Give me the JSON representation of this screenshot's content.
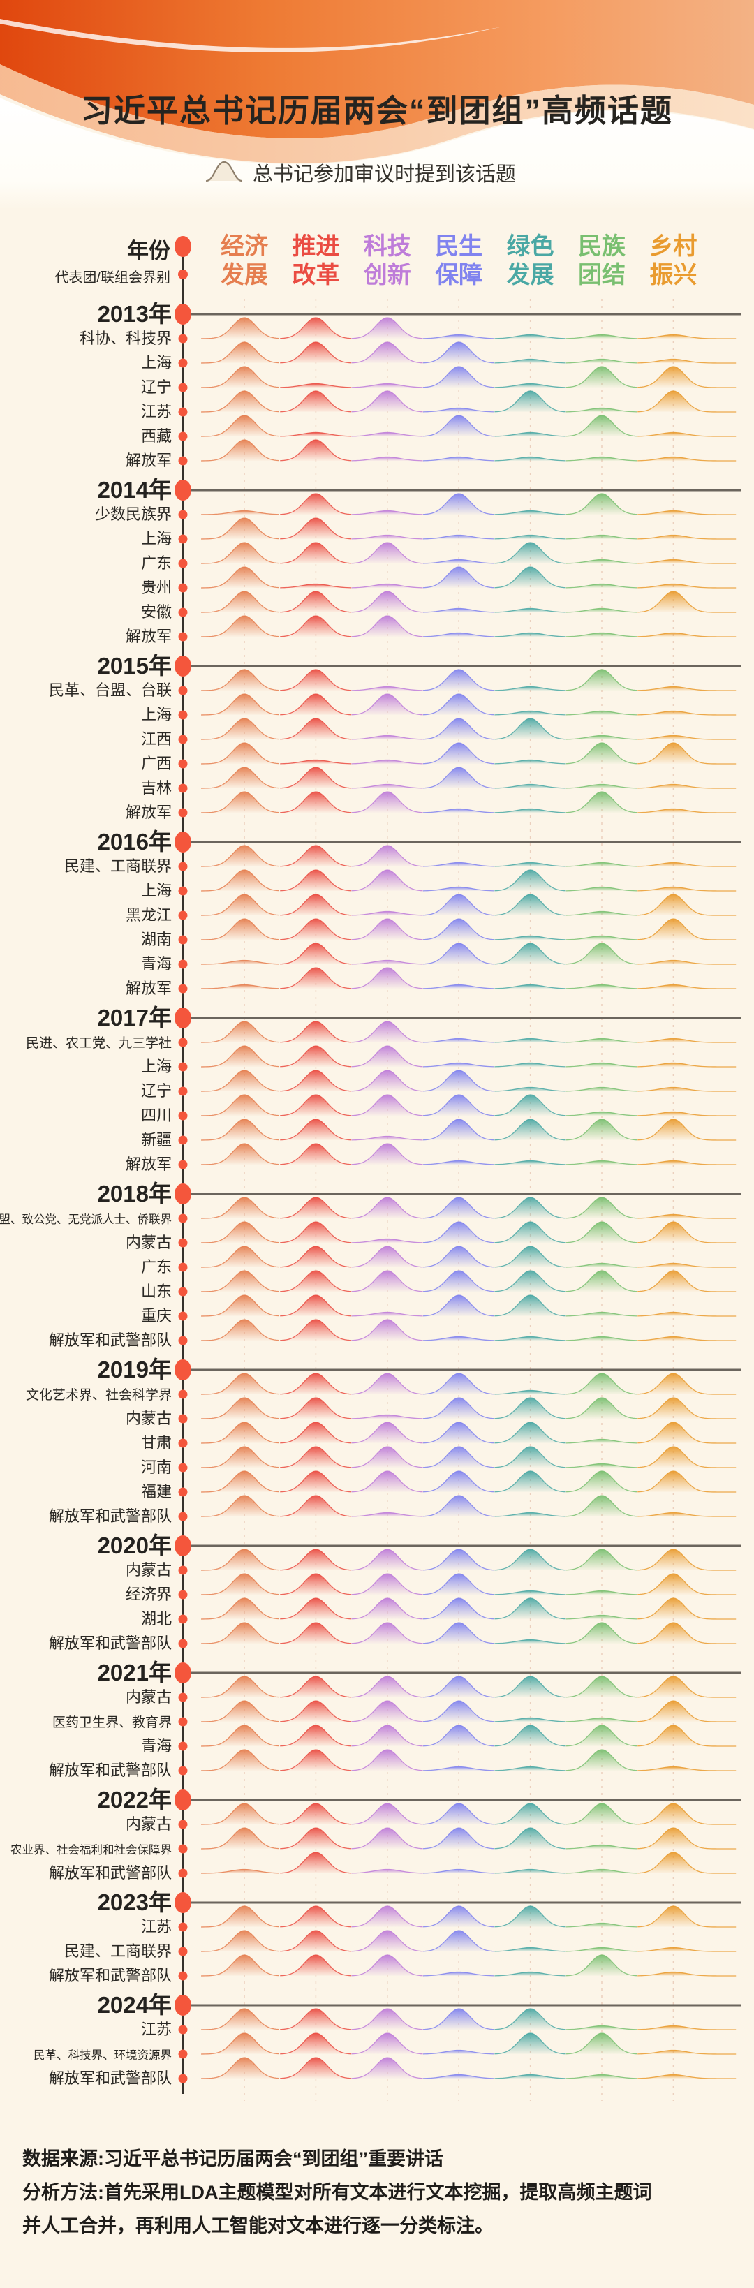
{
  "page": {
    "title": "习近平总书记历届两会“到团组”高频话题",
    "legend_label": "总书记参加审议时提到该话题",
    "axis": {
      "year_label": "年份",
      "group_label": "代表团/联组会界别"
    },
    "footer": {
      "source_line": "数据来源:习近平总书记历届两会“到团组”重要讲话",
      "method_line1": "分析方法:首先采用LDA主题模型对所有文本进行文本挖掘，提取高频主题词",
      "method_line2": "并人工合并，再利用人工智能对文本进行逐一分类标注。"
    },
    "palette": {
      "background": "#FCF5E8",
      "text": "#24221F",
      "timeline": "#35312B",
      "year_line": "#6B655D",
      "dot": "#F4563C",
      "gridline": "#EBD0BE",
      "hero_orange_deep": "#E0470E",
      "hero_orange_mid": "#EE7A33",
      "hero_orange_light": "#F59B5F",
      "hero_peach": "#F6B488"
    }
  },
  "chart_data": {
    "type": "area",
    "variant": "ridgeline-presence-matrix",
    "title": "习近平总书记历届两会“到团组”高频话题",
    "legend": "总书记参加审议时提到该话题",
    "topics": [
      {
        "label": "经济发展",
        "color": "#E57E4F"
      },
      {
        "label": "推进改革",
        "color": "#EA4C42"
      },
      {
        "label": "科技创新",
        "color": "#BE7CD9"
      },
      {
        "label": "民生保障",
        "color": "#8083EF"
      },
      {
        "label": "绿色发展",
        "color": "#4AA8A4"
      },
      {
        "label": "民族团结",
        "color": "#79BF70"
      },
      {
        "label": "乡村振兴",
        "color": "#E99B2F"
      }
    ],
    "years": [
      {
        "year": "2013年",
        "rows": [
          {
            "label": "科协、科技界",
            "mentioned": [
              1,
              1,
              1,
              0,
              0,
              0,
              0
            ]
          },
          {
            "label": "上海",
            "mentioned": [
              1,
              1,
              1,
              1,
              0,
              0,
              0
            ]
          },
          {
            "label": "辽宁",
            "mentioned": [
              1,
              0,
              0,
              1,
              0,
              1,
              1
            ]
          },
          {
            "label": "江苏",
            "mentioned": [
              1,
              1,
              1,
              0,
              1,
              0,
              1
            ]
          },
          {
            "label": "西藏",
            "mentioned": [
              1,
              0,
              0,
              1,
              0,
              1,
              0
            ]
          },
          {
            "label": "解放军",
            "mentioned": [
              1,
              1,
              0,
              0,
              0,
              0,
              0
            ]
          }
        ]
      },
      {
        "year": "2014年",
        "rows": [
          {
            "label": "少数民族界",
            "mentioned": [
              0,
              1,
              0,
              1,
              0,
              1,
              0
            ]
          },
          {
            "label": "上海",
            "mentioned": [
              1,
              1,
              0,
              0,
              0,
              0,
              0
            ]
          },
          {
            "label": "广东",
            "mentioned": [
              1,
              1,
              1,
              0,
              1,
              0,
              0
            ]
          },
          {
            "label": "贵州",
            "mentioned": [
              1,
              0,
              0,
              1,
              1,
              0,
              0
            ]
          },
          {
            "label": "安徽",
            "mentioned": [
              1,
              1,
              1,
              0,
              0,
              0,
              1
            ]
          },
          {
            "label": "解放军",
            "mentioned": [
              1,
              1,
              1,
              0,
              0,
              0,
              0
            ]
          }
        ]
      },
      {
        "year": "2015年",
        "rows": [
          {
            "label": "民革、台盟、台联",
            "mentioned": [
              1,
              1,
              0,
              1,
              0,
              1,
              0
            ]
          },
          {
            "label": "上海",
            "mentioned": [
              1,
              1,
              1,
              1,
              0,
              0,
              0
            ]
          },
          {
            "label": "江西",
            "mentioned": [
              1,
              1,
              0,
              1,
              1,
              0,
              0
            ]
          },
          {
            "label": "广西",
            "mentioned": [
              1,
              0,
              0,
              1,
              0,
              1,
              1
            ]
          },
          {
            "label": "吉林",
            "mentioned": [
              1,
              1,
              0,
              1,
              0,
              0,
              0
            ]
          },
          {
            "label": "解放军",
            "mentioned": [
              1,
              1,
              1,
              0,
              0,
              1,
              0
            ]
          }
        ]
      },
      {
        "year": "2016年",
        "rows": [
          {
            "label": "民建、工商联界",
            "mentioned": [
              1,
              1,
              1,
              0,
              0,
              0,
              0
            ]
          },
          {
            "label": "上海",
            "mentioned": [
              1,
              1,
              1,
              0,
              1,
              0,
              0
            ]
          },
          {
            "label": "黑龙江",
            "mentioned": [
              1,
              1,
              0,
              1,
              1,
              0,
              1
            ]
          },
          {
            "label": "湖南",
            "mentioned": [
              1,
              1,
              1,
              1,
              0,
              0,
              1
            ]
          },
          {
            "label": "青海",
            "mentioned": [
              0,
              1,
              0,
              1,
              1,
              1,
              0
            ]
          },
          {
            "label": "解放军",
            "mentioned": [
              0,
              1,
              1,
              0,
              0,
              0,
              0
            ]
          }
        ]
      },
      {
        "year": "2017年",
        "rows": [
          {
            "label": "民进、农工党、九三学社",
            "mentioned": [
              1,
              1,
              1,
              0,
              0,
              0,
              0
            ]
          },
          {
            "label": "上海",
            "mentioned": [
              1,
              1,
              1,
              0,
              0,
              0,
              0
            ]
          },
          {
            "label": "辽宁",
            "mentioned": [
              1,
              1,
              1,
              1,
              0,
              0,
              0
            ]
          },
          {
            "label": "四川",
            "mentioned": [
              1,
              1,
              1,
              1,
              1,
              0,
              0
            ]
          },
          {
            "label": "新疆",
            "mentioned": [
              1,
              1,
              0,
              1,
              1,
              1,
              1
            ]
          },
          {
            "label": "解放军",
            "mentioned": [
              1,
              1,
              1,
              0,
              0,
              0,
              0
            ]
          }
        ]
      },
      {
        "year": "2018年",
        "rows": [
          {
            "label": "民盟、致公党、无党派人士、侨联界",
            "mentioned": [
              1,
              1,
              1,
              1,
              1,
              1,
              0
            ]
          },
          {
            "label": "内蒙古",
            "mentioned": [
              1,
              1,
              0,
              1,
              1,
              1,
              1
            ]
          },
          {
            "label": "广东",
            "mentioned": [
              1,
              1,
              1,
              1,
              1,
              0,
              0
            ]
          },
          {
            "label": "山东",
            "mentioned": [
              1,
              1,
              1,
              1,
              1,
              1,
              1
            ]
          },
          {
            "label": "重庆",
            "mentioned": [
              1,
              1,
              0,
              1,
              1,
              0,
              0
            ]
          },
          {
            "label": "解放军和武警部队",
            "mentioned": [
              1,
              1,
              1,
              0,
              0,
              0,
              0
            ]
          }
        ]
      },
      {
        "year": "2019年",
        "rows": [
          {
            "label": "文化艺术界、社会科学界",
            "mentioned": [
              1,
              1,
              1,
              1,
              0,
              1,
              1
            ]
          },
          {
            "label": "内蒙古",
            "mentioned": [
              1,
              1,
              0,
              1,
              1,
              1,
              1
            ]
          },
          {
            "label": "甘肃",
            "mentioned": [
              1,
              1,
              1,
              1,
              1,
              0,
              1
            ]
          },
          {
            "label": "河南",
            "mentioned": [
              1,
              1,
              1,
              1,
              1,
              0,
              1
            ]
          },
          {
            "label": "福建",
            "mentioned": [
              1,
              1,
              1,
              1,
              1,
              1,
              1
            ]
          },
          {
            "label": "解放军和武警部队",
            "mentioned": [
              1,
              1,
              0,
              1,
              0,
              1,
              0
            ]
          }
        ]
      },
      {
        "year": "2020年",
        "rows": [
          {
            "label": "内蒙古",
            "mentioned": [
              1,
              1,
              1,
              1,
              1,
              1,
              1
            ]
          },
          {
            "label": "经济界",
            "mentioned": [
              1,
              1,
              1,
              1,
              0,
              0,
              1
            ]
          },
          {
            "label": "湖北",
            "mentioned": [
              1,
              1,
              1,
              1,
              1,
              0,
              1
            ]
          },
          {
            "label": "解放军和武警部队",
            "mentioned": [
              1,
              1,
              1,
              1,
              0,
              1,
              1
            ]
          }
        ]
      },
      {
        "year": "2021年",
        "rows": [
          {
            "label": "内蒙古",
            "mentioned": [
              1,
              1,
              1,
              1,
              1,
              1,
              1
            ]
          },
          {
            "label": "医药卫生界、教育界",
            "mentioned": [
              1,
              1,
              1,
              1,
              0,
              0,
              1
            ]
          },
          {
            "label": "青海",
            "mentioned": [
              1,
              1,
              1,
              1,
              1,
              1,
              1
            ]
          },
          {
            "label": "解放军和武警部队",
            "mentioned": [
              1,
              1,
              1,
              0,
              0,
              1,
              0
            ]
          }
        ]
      },
      {
        "year": "2022年",
        "rows": [
          {
            "label": "内蒙古",
            "mentioned": [
              1,
              1,
              1,
              1,
              1,
              1,
              1
            ]
          },
          {
            "label": "农业界、社会福利和社会保障界",
            "mentioned": [
              1,
              1,
              1,
              1,
              1,
              0,
              1
            ]
          },
          {
            "label": "解放军和武警部队",
            "mentioned": [
              0,
              1,
              0,
              0,
              0,
              0,
              1
            ]
          }
        ]
      },
      {
        "year": "2023年",
        "rows": [
          {
            "label": "江苏",
            "mentioned": [
              1,
              1,
              1,
              1,
              1,
              0,
              1
            ]
          },
          {
            "label": "民建、工商联界",
            "mentioned": [
              1,
              1,
              1,
              1,
              0,
              0,
              0
            ]
          },
          {
            "label": "解放军和武警部队",
            "mentioned": [
              1,
              1,
              1,
              0,
              0,
              1,
              0
            ]
          }
        ]
      },
      {
        "year": "2024年",
        "rows": [
          {
            "label": "江苏",
            "mentioned": [
              1,
              1,
              1,
              1,
              1,
              0,
              0
            ]
          },
          {
            "label": "民革、科技界、环境资源界",
            "mentioned": [
              1,
              1,
              1,
              0,
              1,
              1,
              0
            ]
          },
          {
            "label": "解放军和武警部队",
            "mentioned": [
              1,
              1,
              1,
              0,
              0,
              0,
              0
            ]
          }
        ]
      }
    ]
  }
}
